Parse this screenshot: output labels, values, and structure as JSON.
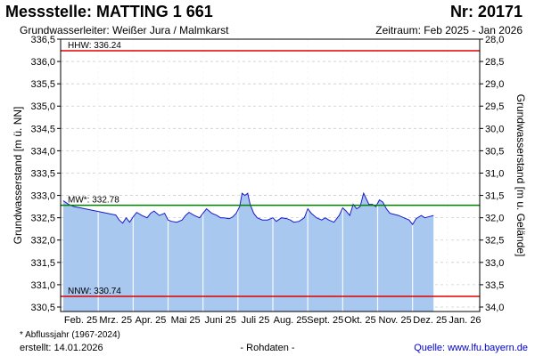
{
  "header": {
    "title": "Messstelle: MATTING 1 661",
    "station_number": "Nr: 20171",
    "aquifer": "Grundwasserleiter:   Weißer Jura / Malmkarst",
    "period": "Zeitraum: Feb 2025 - Jan 2026"
  },
  "footer": {
    "footnote": "* Abflussjahr (1967-2024)",
    "created": "erstellt:  14.01.2026",
    "data_note": "- Rohdaten -",
    "source": "Quelle:  www.lfu.bayern.de"
  },
  "colors": {
    "series_line": "#1a1acc",
    "series_fill": "#a8c8f0",
    "mw_line": "#008000",
    "extreme_lines": "#dd0000",
    "grid": "#cccccc"
  },
  "chart_data": {
    "type": "area",
    "ylabel": "Grundwasserstand [m ü. NN]",
    "ylabel_right": "Grundwasserstand [m u. Gelände]",
    "ylim": [
      330.4,
      336.5
    ],
    "ylim_right": [
      28.0,
      34.1
    ],
    "yticks": [
      "330,5",
      "331,0",
      "331,5",
      "332,0",
      "332,5",
      "333,0",
      "333,5",
      "334,0",
      "334,5",
      "335,0",
      "335,5",
      "336,0",
      "336,5"
    ],
    "yticks_right": [
      "28,0",
      "28,5",
      "29,0",
      "29,5",
      "30,0",
      "30,5",
      "31,0",
      "31,5",
      "32,0",
      "32,5",
      "33,0",
      "33,5",
      "34,0"
    ],
    "x_categories": [
      "Feb. 25",
      "Mrz. 25",
      "Apr. 25",
      "Mai 25",
      "Juni 25",
      "Juli 25",
      "Aug. 25",
      "Sept. 25",
      "Okt. 25",
      "Nov. 25",
      "Dez. 25",
      "Jan. 26"
    ],
    "grid": true,
    "reference_lines": [
      {
        "label": "HHW: 336.24",
        "value": 336.24
      },
      {
        "label": "MW*: 332.78",
        "value": 332.78
      },
      {
        "label": "NNW: 330.74",
        "value": 330.74
      }
    ],
    "series": [
      {
        "x_months": [
          0,
          0.15,
          0.3,
          0.5,
          0.75,
          1.0,
          1.25,
          1.5,
          1.6,
          1.7,
          1.8,
          1.9,
          2.0,
          2.1,
          2.25,
          2.4,
          2.5,
          2.6,
          2.75,
          2.9,
          3.0,
          3.1,
          3.25,
          3.4,
          3.5,
          3.6,
          3.75,
          3.9,
          4.0,
          4.1,
          4.25,
          4.4,
          4.5,
          4.6,
          4.75,
          4.85,
          4.95,
          5.05,
          5.12,
          5.2,
          5.28,
          5.35,
          5.45,
          5.55,
          5.7,
          5.85,
          6.0,
          6.1,
          6.25,
          6.4,
          6.5,
          6.6,
          6.75,
          6.9,
          7.0,
          7.1,
          7.25,
          7.4,
          7.5,
          7.6,
          7.75,
          7.9,
          8.0,
          8.1,
          8.2,
          8.3,
          8.4,
          8.5,
          8.6,
          8.75,
          8.85,
          8.95,
          9.05,
          9.15,
          9.25,
          9.35,
          9.45,
          9.6,
          9.75,
          9.9,
          10.0,
          10.1,
          10.25,
          10.35,
          10.45,
          10.6
        ],
        "values": [
          332.88,
          332.8,
          332.75,
          332.72,
          332.68,
          332.64,
          332.6,
          332.56,
          332.45,
          332.38,
          332.5,
          332.4,
          332.52,
          332.62,
          332.55,
          332.5,
          332.6,
          332.65,
          332.55,
          332.6,
          332.45,
          332.42,
          332.4,
          332.45,
          332.55,
          332.62,
          332.55,
          332.5,
          332.6,
          332.7,
          332.6,
          332.55,
          332.5,
          332.5,
          332.48,
          332.52,
          332.6,
          332.75,
          333.05,
          333.0,
          333.05,
          332.8,
          332.6,
          332.5,
          332.45,
          332.45,
          332.5,
          332.42,
          332.5,
          332.48,
          332.45,
          332.4,
          332.42,
          332.5,
          332.7,
          332.6,
          332.5,
          332.45,
          332.5,
          332.45,
          332.4,
          332.55,
          332.72,
          332.65,
          332.55,
          332.8,
          332.7,
          332.75,
          333.05,
          332.8,
          332.8,
          332.75,
          332.9,
          332.85,
          332.7,
          332.6,
          332.58,
          332.55,
          332.5,
          332.45,
          332.35,
          332.48,
          332.55,
          332.5,
          332.52,
          332.55
        ]
      }
    ]
  }
}
